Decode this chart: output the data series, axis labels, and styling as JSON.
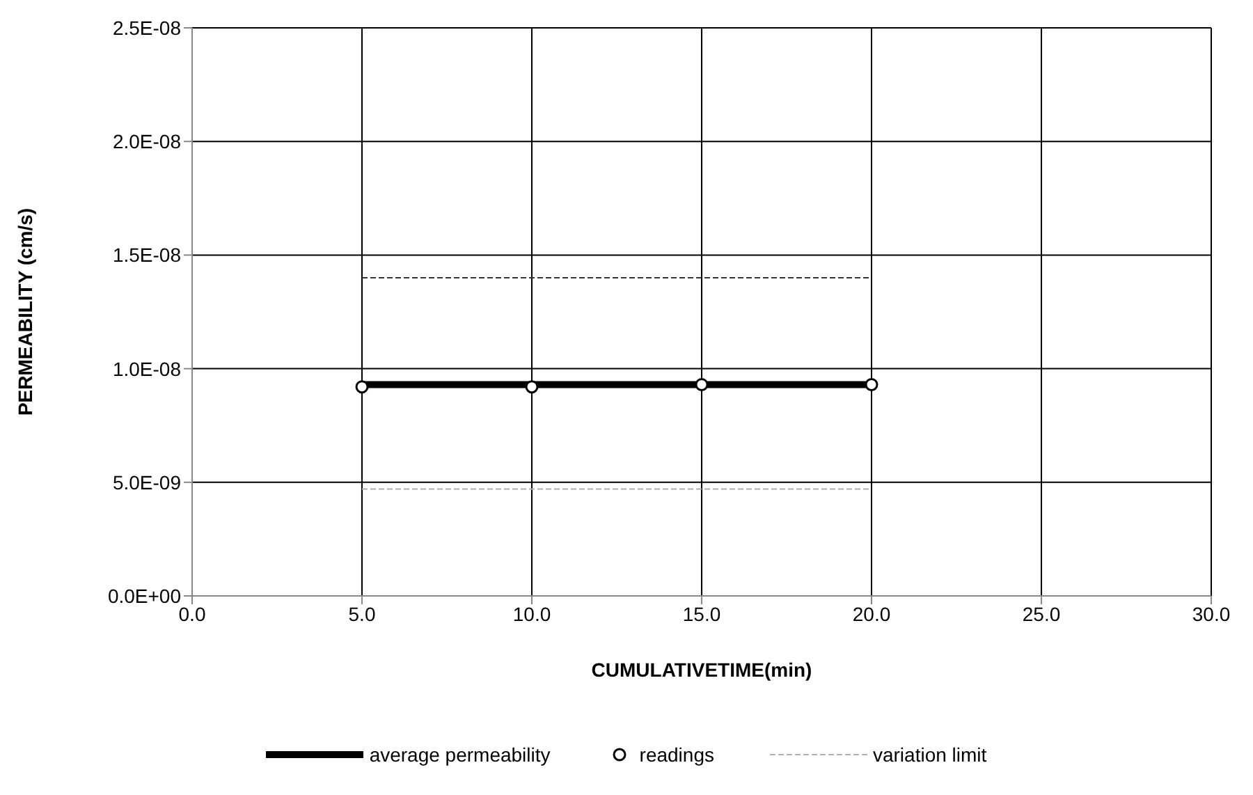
{
  "chart_data": {
    "type": "line",
    "xlabel": "CUMULATIVETIME(min)",
    "ylabel": "PERMEABILITY (cm/s)",
    "xlim": [
      0,
      30
    ],
    "xticks": [
      {
        "value": 0,
        "label": "0.0"
      },
      {
        "value": 5,
        "label": "5.0"
      },
      {
        "value": 10,
        "label": "10.0"
      },
      {
        "value": 15,
        "label": "15.0"
      },
      {
        "value": 20,
        "label": "20.0"
      },
      {
        "value": 25,
        "label": "25.0"
      },
      {
        "value": 30,
        "label": "30.0"
      }
    ],
    "ylim": [
      0,
      2.5e-08
    ],
    "yticks": [
      {
        "value": 0,
        "label": "0.0E+00"
      },
      {
        "value": 5e-09,
        "label": "5.0E-09"
      },
      {
        "value": 1e-08,
        "label": "1.0E-08"
      },
      {
        "value": 1.5e-08,
        "label": "1.5E-08"
      },
      {
        "value": 2e-08,
        "label": "2.0E-08"
      },
      {
        "value": 2.5e-08,
        "label": "2.5E-08"
      }
    ],
    "grid": true,
    "legend": "bottom",
    "series": [
      {
        "name": "average permeability",
        "color": "#000000",
        "marker": "none",
        "line_style": "solid",
        "x": [
          5,
          20
        ],
        "values": [
          9.3e-09,
          9.3e-09
        ]
      },
      {
        "name": "readings",
        "type": "scatter",
        "color": "#000000",
        "marker": "circle",
        "x": [
          5,
          10,
          15,
          20
        ],
        "values": [
          9.2e-09,
          9.2e-09,
          9.3e-09,
          9.3e-09
        ]
      },
      {
        "color": "#333333",
        "marker": "none",
        "line_style": "dashed",
        "x": [
          5,
          20
        ],
        "values": [
          1.4e-08,
          1.4e-08
        ]
      },
      {
        "name": "variation limit",
        "color": "#b0b0b0",
        "marker": "none",
        "line_style": "dashed",
        "x": [
          5,
          20
        ],
        "values": [
          4.7e-09,
          4.7e-09
        ]
      }
    ]
  }
}
